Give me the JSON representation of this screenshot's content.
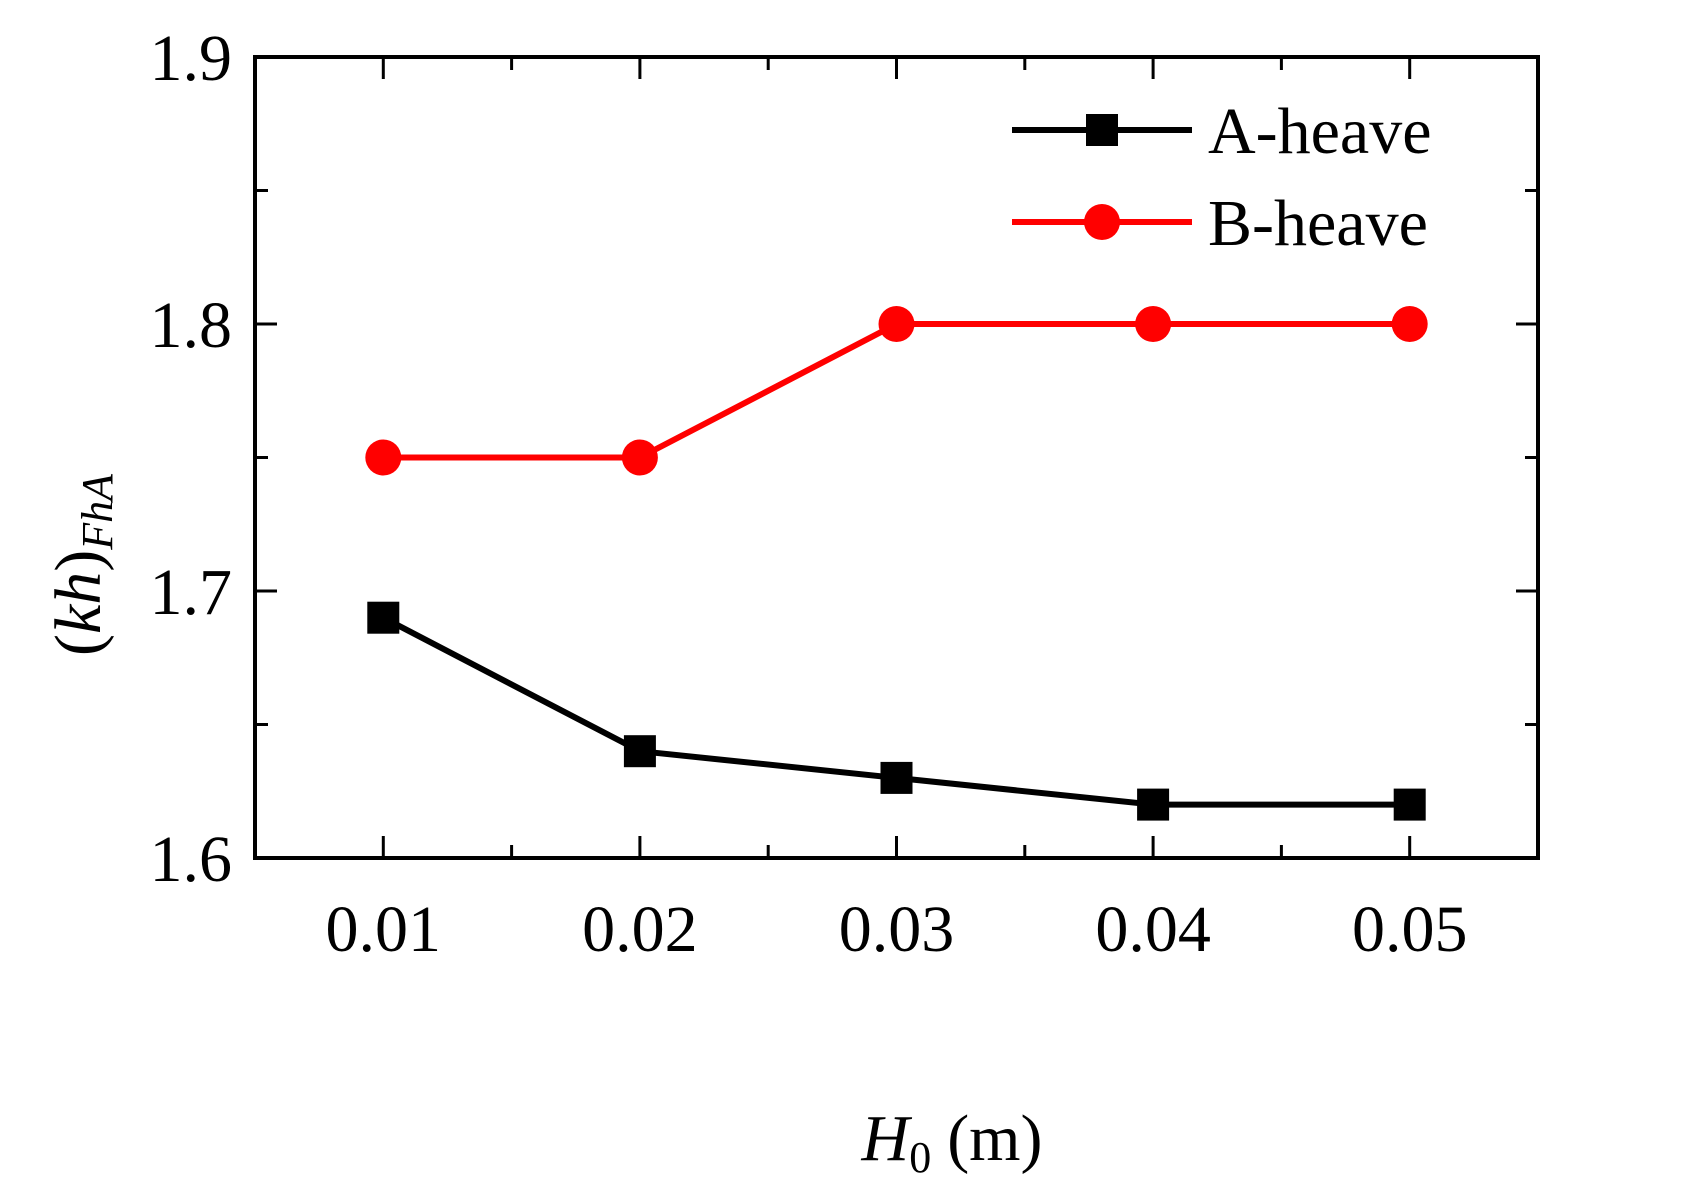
{
  "chart_data": {
    "type": "line",
    "xlabel": {
      "var": "H",
      "sub": "0",
      "unit": "(m)"
    },
    "ylabel": {
      "open": "(",
      "var": "kh",
      "close": ")",
      "sub": "FhA"
    },
    "xlim": [
      0.005,
      0.055
    ],
    "ylim": [
      1.6,
      1.9
    ],
    "x": [
      0.01,
      0.02,
      0.03,
      0.04,
      0.05
    ],
    "x_ticks": [
      "0.01",
      "0.02",
      "0.03",
      "0.04",
      "0.05"
    ],
    "y_major_ticks": [
      1.6,
      1.7,
      1.8,
      1.9
    ],
    "y_tick_labels": [
      "1.6",
      "1.7",
      "1.8",
      "1.9"
    ],
    "y_minor_ticks": [
      1.65,
      1.75,
      1.85
    ],
    "x_minor_ticks": [
      0.015,
      0.025,
      0.035,
      0.045
    ],
    "grid": false,
    "legend_position": "top-right",
    "series": [
      {
        "name": "A-heave",
        "values": [
          1.69,
          1.64,
          1.63,
          1.62,
          1.62
        ],
        "color": "#000000",
        "marker": "square"
      },
      {
        "name": "B-heave",
        "values": [
          1.75,
          1.75,
          1.8,
          1.8,
          1.8
        ],
        "color": "#ff0000",
        "marker": "circle"
      }
    ]
  }
}
